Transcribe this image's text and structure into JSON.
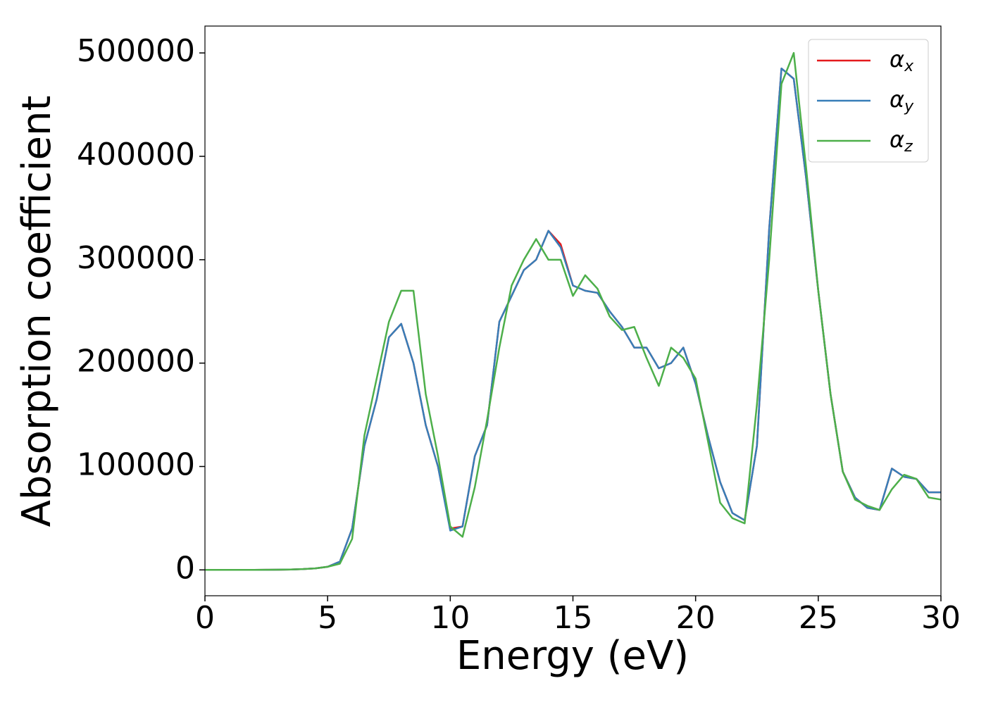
{
  "chart_data": {
    "type": "line",
    "xlabel": "Energy (eV)",
    "ylabel": "Absorption coefficient",
    "x": [
      0,
      0.5,
      1,
      1.5,
      2,
      2.5,
      3,
      3.5,
      4,
      4.5,
      5,
      5.5,
      6,
      6.5,
      7,
      7.5,
      8,
      8.5,
      9,
      9.5,
      10,
      10.5,
      11,
      11.5,
      12,
      12.5,
      13,
      13.5,
      14,
      14.5,
      15,
      15.5,
      16,
      16.5,
      17,
      17.5,
      18,
      18.5,
      19,
      19.5,
      20,
      20.5,
      21,
      21.5,
      22,
      22.5,
      23,
      23.5,
      24,
      24.5,
      25,
      25.5,
      26,
      26.5,
      27,
      27.5,
      28,
      28.5,
      29,
      29.5,
      30
    ],
    "series": [
      {
        "name": "αx",
        "color": "#e41a1c",
        "values": [
          0,
          0,
          0,
          0,
          0,
          100,
          200,
          400,
          800,
          1500,
          3000,
          8000,
          40000,
          120000,
          165000,
          225000,
          238000,
          200000,
          140000,
          100000,
          40000,
          42000,
          110000,
          140000,
          240000,
          265000,
          290000,
          300000,
          328000,
          315000,
          275000,
          270000,
          268000,
          250000,
          235000,
          215000,
          215000,
          195000,
          200000,
          215000,
          180000,
          130000,
          85000,
          55000,
          48000,
          120000,
          330000,
          485000,
          475000,
          380000,
          270000,
          170000,
          95000,
          70000,
          60000,
          58000,
          98000,
          90000,
          88000,
          75000,
          75000
        ]
      },
      {
        "name": "αy",
        "color": "#377eb8",
        "values": [
          0,
          0,
          0,
          0,
          0,
          100,
          200,
          400,
          800,
          1500,
          3000,
          8000,
          40000,
          120000,
          165000,
          225000,
          238000,
          200000,
          140000,
          100000,
          38000,
          42000,
          110000,
          140000,
          240000,
          265000,
          290000,
          300000,
          328000,
          312000,
          275000,
          270000,
          268000,
          250000,
          235000,
          215000,
          215000,
          195000,
          200000,
          215000,
          180000,
          130000,
          85000,
          55000,
          48000,
          120000,
          330000,
          485000,
          475000,
          380000,
          270000,
          170000,
          95000,
          70000,
          60000,
          58000,
          98000,
          90000,
          88000,
          75000,
          75000
        ]
      },
      {
        "name": "αz",
        "color": "#4daf4a",
        "values": [
          0,
          0,
          0,
          0,
          0,
          100,
          200,
          400,
          800,
          1500,
          3000,
          6000,
          30000,
          130000,
          185000,
          240000,
          270000,
          270000,
          170000,
          110000,
          42000,
          32000,
          80000,
          145000,
          215000,
          275000,
          300000,
          320000,
          300000,
          300000,
          265000,
          285000,
          272000,
          245000,
          232000,
          235000,
          205000,
          178000,
          215000,
          205000,
          185000,
          125000,
          65000,
          50000,
          45000,
          160000,
          300000,
          470000,
          500000,
          390000,
          270000,
          170000,
          95000,
          68000,
          62000,
          58000,
          78000,
          92000,
          88000,
          70000,
          68000
        ]
      }
    ],
    "xlim": [
      0,
      30
    ],
    "xticks": [
      0,
      5,
      10,
      15,
      20,
      25,
      30
    ],
    "ylim": [
      -25000,
      526000
    ],
    "yticks": [
      0,
      100000,
      200000,
      300000,
      400000,
      500000
    ],
    "grid": false,
    "legend": "upper right"
  }
}
